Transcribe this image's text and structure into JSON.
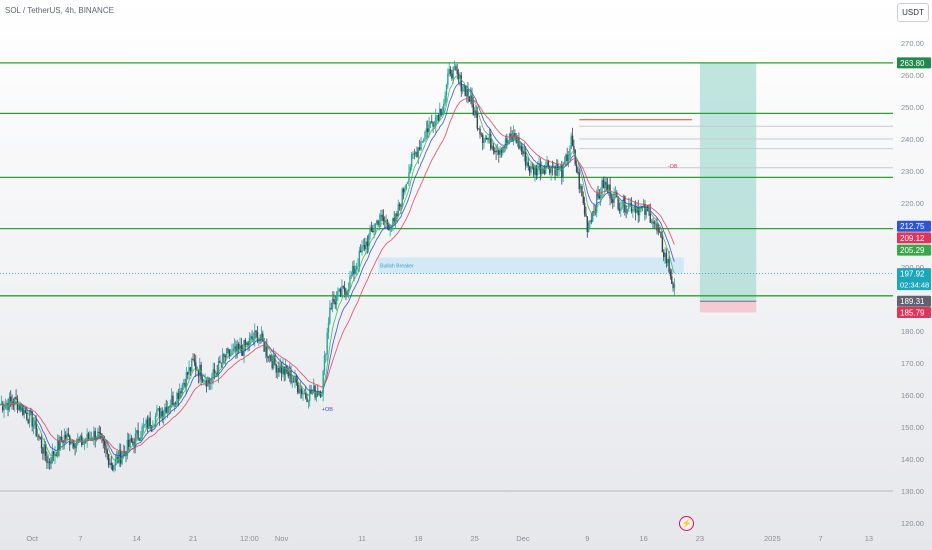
{
  "header": {
    "title": "SOL / TetherUS, 4h, BINANCE",
    "currency": "USDT"
  },
  "icons": {
    "flash": "lightning-icon"
  },
  "colors": {
    "up": "#26a69a",
    "down": "#3d4450",
    "level": "#2aa130",
    "ema_blue": "#3b45c8",
    "ema_red": "#e0415a",
    "ema_green": "#4caf50",
    "target_zone": "#9fd8cf",
    "stop_zone": "#f6c4cd",
    "ob_zone": "#cfe9f6",
    "current_price": "#1ba7b9"
  },
  "chart_data": {
    "type": "candlestick",
    "symbol": "SOL / TetherUS",
    "timeframe": "4h",
    "exchange": "BINANCE",
    "ylim": [
      120,
      272
    ],
    "y_ticks": [
      120,
      130,
      140,
      150,
      160,
      170,
      180,
      190,
      200,
      210,
      220,
      230,
      240,
      250,
      260,
      270
    ],
    "y_tick_labels": [
      "120.00",
      "130.00",
      "140.00",
      "150.00",
      "160.00",
      "170.00",
      "180.00",
      "190.00",
      "200.00",
      "210.00",
      "220.00",
      "230.00",
      "240.00",
      "250.00",
      "260.00",
      "270.00"
    ],
    "x_range": [
      "2024-09-27",
      "2025-01-16"
    ],
    "x_ticks": [
      {
        "date": "2024-10-01",
        "label": "Oct"
      },
      {
        "date": "2024-10-07",
        "label": "7"
      },
      {
        "date": "2024-10-14",
        "label": "14"
      },
      {
        "date": "2024-10-21",
        "label": "21"
      },
      {
        "date": "2024-10-28",
        "label": "12:00"
      },
      {
        "date": "2024-11-01",
        "label": "Nov"
      },
      {
        "date": "2024-11-11",
        "label": "11"
      },
      {
        "date": "2024-11-18",
        "label": "18"
      },
      {
        "date": "2024-11-25",
        "label": "25"
      },
      {
        "date": "2024-12-01",
        "label": "Dec"
      },
      {
        "date": "2024-12-09",
        "label": "9"
      },
      {
        "date": "2024-12-16",
        "label": "16"
      },
      {
        "date": "2024-12-23",
        "label": "23"
      },
      {
        "date": "2025-01-01",
        "label": "2025"
      },
      {
        "date": "2025-01-07",
        "label": "7"
      },
      {
        "date": "2025-01-13",
        "label": "13"
      }
    ],
    "close_path": [
      [
        "2024-09-27",
        157
      ],
      [
        "2024-09-29",
        158
      ],
      [
        "2024-10-01",
        152
      ],
      [
        "2024-10-03",
        139
      ],
      [
        "2024-10-05",
        147
      ],
      [
        "2024-10-07",
        145
      ],
      [
        "2024-10-09",
        148
      ],
      [
        "2024-10-11",
        138
      ],
      [
        "2024-10-13",
        144
      ],
      [
        "2024-10-15",
        150
      ],
      [
        "2024-10-17",
        155
      ],
      [
        "2024-10-19",
        160
      ],
      [
        "2024-10-21",
        170
      ],
      [
        "2024-10-23",
        164
      ],
      [
        "2024-10-25",
        172
      ],
      [
        "2024-10-27",
        174
      ],
      [
        "2024-10-29",
        179
      ],
      [
        "2024-10-31",
        170
      ],
      [
        "2024-11-02",
        166
      ],
      [
        "2024-11-04",
        160
      ],
      [
        "2024-11-06",
        162
      ],
      [
        "2024-11-07",
        188
      ],
      [
        "2024-11-09",
        193
      ],
      [
        "2024-11-11",
        205
      ],
      [
        "2024-11-13",
        215
      ],
      [
        "2024-11-15",
        213
      ],
      [
        "2024-11-17",
        232
      ],
      [
        "2024-11-19",
        243
      ],
      [
        "2024-11-21",
        250
      ],
      [
        "2024-11-22",
        262
      ],
      [
        "2024-11-24",
        255
      ],
      [
        "2024-11-26",
        241
      ],
      [
        "2024-11-28",
        237
      ],
      [
        "2024-11-30",
        241
      ],
      [
        "2024-12-02",
        230
      ],
      [
        "2024-12-04",
        232
      ],
      [
        "2024-12-06",
        230
      ],
      [
        "2024-12-07",
        239
      ],
      [
        "2024-12-09",
        213
      ],
      [
        "2024-12-11",
        226
      ],
      [
        "2024-12-13",
        220
      ],
      [
        "2024-12-15",
        219
      ],
      [
        "2024-12-17",
        216
      ],
      [
        "2024-12-19",
        201
      ],
      [
        "2024-12-20",
        191
      ]
    ],
    "series": [
      {
        "name": "EMA",
        "color": "#3b45c8"
      },
      {
        "name": "EMA",
        "color": "#e0415a"
      },
      {
        "name": "EMA",
        "color": "#4caf50"
      }
    ],
    "horizontal_levels": [
      263.8,
      248.0,
      228.0,
      212.0,
      191.0,
      130.0
    ],
    "position_tool": {
      "type": "short",
      "from": "2024-12-23",
      "to": "2024-12-30",
      "entry": 189.31,
      "target": 263.8,
      "stop": 185.79
    },
    "order_block_zone": {
      "from": "2024-11-13",
      "to": "2024-12-21",
      "low": 198,
      "high": 203,
      "label": "Bullish Breaker"
    },
    "annotations": [
      {
        "text": "+OB",
        "date": "2024-11-06",
        "price": 155
      },
      {
        "text": "-OB",
        "date": "2024-12-19",
        "price": 231
      }
    ],
    "price_labels": [
      {
        "value": "263.80",
        "price": 263.8,
        "color": "#1f8a4c"
      },
      {
        "value": "212.75",
        "price": 212.75,
        "color": "#2f55d4"
      },
      {
        "value": "209.12",
        "price": 209.12,
        "color": "#e0345a"
      },
      {
        "value": "205.29",
        "price": 205.29,
        "color": "#3aa64a"
      },
      {
        "value": "197.92",
        "price": 197.92,
        "color": "#1ba7b9",
        "countdown": "02:34:48"
      },
      {
        "value": "189.31",
        "price": 189.31,
        "color": "#5f6370"
      },
      {
        "value": "185.79",
        "price": 185.79,
        "color": "#e0345a"
      }
    ],
    "last_price": 197.92,
    "countdown": "02:34:48"
  }
}
